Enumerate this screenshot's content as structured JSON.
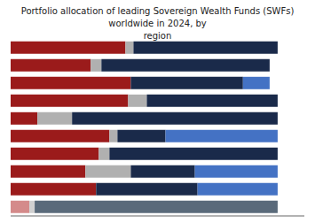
{
  "chart_data": {
    "type": "bar",
    "title": "Portfolio allocation of leading Sovereign Wealth Funds (SWFs) worldwide in 2024, by\nregion",
    "orientation": "horizontal",
    "stacked": true,
    "grid": false,
    "tick_labels": false,
    "categories": [
      null,
      null,
      null,
      null,
      null,
      null,
      null,
      null,
      null,
      null
    ],
    "xlim": [
      0,
      110
    ],
    "series": [
      {
        "values": [
          43,
          30,
          45,
          44,
          10,
          37,
          33,
          28,
          32,
          7
        ],
        "colors": [
          "#9b1b1b",
          "#9b1b1b",
          "#9b1b1b",
          "#9b1b1b",
          "#9b1b1b",
          "#9b1b1b",
          "#9b1b1b",
          "#9b1b1b",
          "#9b1b1b",
          "#d48a8a"
        ]
      },
      {
        "values": [
          3,
          4,
          0,
          7,
          13,
          3,
          4,
          17,
          0,
          2
        ],
        "colors": [
          "#b0b0b0",
          "#b0b0b0",
          "#b0b0b0",
          "#b0b0b0",
          "#b0b0b0",
          "#b0b0b0",
          "#b0b0b0",
          "#b0b0b0",
          "#b0b0b0",
          "#d0d0d0"
        ]
      },
      {
        "values": [
          54,
          63,
          42,
          49,
          77,
          18,
          63,
          24,
          38,
          91
        ],
        "colors": [
          "#1a2a4a",
          "#1a2a4a",
          "#1a2a4a",
          "#1a2a4a",
          "#1a2a4a",
          "#1a2a4a",
          "#1a2a4a",
          "#1a2a4a",
          "#1a2a4a",
          "#5a6a7a"
        ]
      },
      {
        "values": [
          0,
          0,
          10,
          0,
          0,
          42,
          0,
          31,
          30,
          0
        ],
        "colors": [
          "#4472c4",
          "#4472c4",
          "#4472c4",
          "#4472c4",
          "#4472c4",
          "#4472c4",
          "#4472c4",
          "#4472c4",
          "#4472c4",
          "#b8cce4"
        ]
      }
    ]
  }
}
